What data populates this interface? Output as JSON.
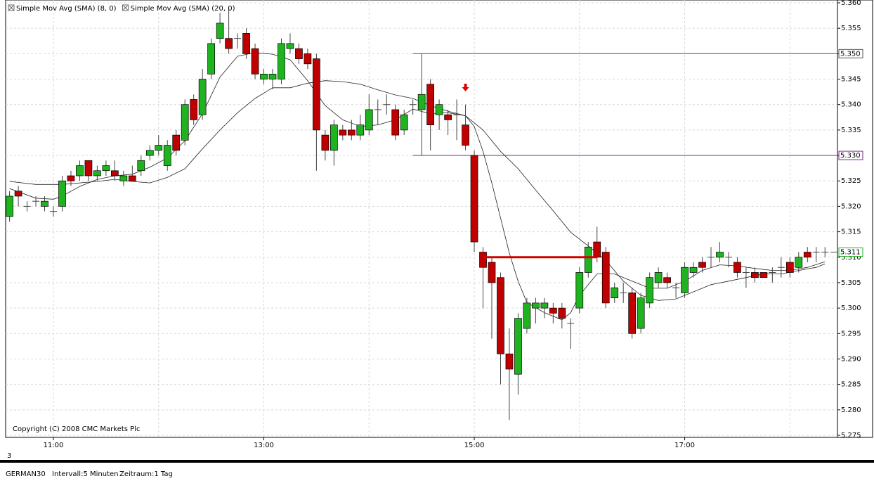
{
  "chart_data": {
    "type": "candlestick",
    "indicators": [
      {
        "name": "Simple Mov Avg (SMA) (8, 0)",
        "color": "#222222",
        "x": [
          "10:35",
          "10:50",
          "11:00",
          "11:05",
          "11:15",
          "11:25",
          "11:35",
          "11:45",
          "11:55",
          "12:05",
          "12:15",
          "12:25",
          "12:35",
          "12:45",
          "12:55",
          "13:05",
          "13:15",
          "13:25",
          "13:35",
          "13:45",
          "13:55",
          "14:05",
          "14:15",
          "14:25",
          "14:35",
          "14:45",
          "14:55",
          "15:00",
          "15:05",
          "15:10",
          "15:15",
          "15:20",
          "15:25",
          "15:30",
          "15:40",
          "15:50",
          "15:55",
          "16:00",
          "16:10",
          "16:20",
          "16:30",
          "16:40",
          "16:50",
          "17:00",
          "17:10",
          "17:20",
          "17:30",
          "17:40",
          "17:50",
          "18:00",
          "18:10",
          "18:20"
        ],
        "values": [
          5323.5,
          5321.6,
          5321.4,
          5322,
          5323.9,
          5325.3,
          5326,
          5326.3,
          5327.7,
          5329.5,
          5332.9,
          5338.2,
          5345.4,
          5349.5,
          5350.2,
          5349.9,
          5348.8,
          5344.7,
          5339.8,
          5337,
          5335.7,
          5336,
          5337,
          5339.1,
          5338.2,
          5338.4,
          5337.8,
          5335.7,
          5330.8,
          5324.6,
          5317.7,
          5310.8,
          5305.3,
          5301.1,
          5299.1,
          5297.7,
          5299.1,
          5302.5,
          5306.7,
          5306.7,
          5305.3,
          5303.9,
          5303.9,
          5305.3,
          5307.4,
          5308.5,
          5308.3,
          5307.8,
          5307.4,
          5307.4,
          5308,
          5309.1
        ]
      },
      {
        "name": "Simple Mov Avg (SMA) (20, 0)",
        "color": "#222222",
        "x": [
          "10:35",
          "10:50",
          "11:05",
          "11:25",
          "11:35",
          "11:45",
          "11:55",
          "12:05",
          "12:15",
          "12:25",
          "12:35",
          "12:45",
          "12:55",
          "13:05",
          "13:15",
          "13:25",
          "13:35",
          "13:45",
          "13:55",
          "14:05",
          "14:15",
          "14:25",
          "14:35",
          "14:45",
          "14:55",
          "15:05",
          "15:15",
          "15:25",
          "15:35",
          "15:45",
          "15:55",
          "16:05",
          "16:15",
          "16:25",
          "16:35",
          "16:45",
          "16:55",
          "17:05",
          "17:15",
          "17:25",
          "17:35",
          "17:45",
          "17:55",
          "18:05",
          "18:15",
          "18:20"
        ],
        "values": [
          5324.9,
          5324.3,
          5324.3,
          5324.9,
          5325.3,
          5324.9,
          5324.6,
          5325.7,
          5327.4,
          5331.3,
          5335,
          5338.4,
          5341.2,
          5343.3,
          5343.3,
          5344.2,
          5344.7,
          5344.5,
          5344,
          5342.9,
          5341.9,
          5341.2,
          5339.8,
          5338.7,
          5337.8,
          5335,
          5330.8,
          5327.4,
          5323.2,
          5319.1,
          5314.9,
          5312.2,
          5309.4,
          5305.3,
          5302.5,
          5301.5,
          5301.8,
          5303.2,
          5304.6,
          5305.3,
          5306,
          5306.7,
          5306.7,
          5307.4,
          5308,
          5308.7
        ]
      }
    ],
    "x": [
      "10:35",
      "10:40",
      "10:45",
      "10:50",
      "10:55",
      "11:00",
      "11:05",
      "11:10",
      "11:15",
      "11:20",
      "11:25",
      "11:30",
      "11:35",
      "11:40",
      "11:45",
      "11:50",
      "11:55",
      "12:00",
      "12:05",
      "12:10",
      "12:15",
      "12:20",
      "12:25",
      "12:30",
      "12:35",
      "12:40",
      "12:45",
      "12:50",
      "12:55",
      "13:00",
      "13:05",
      "13:10",
      "13:15",
      "13:20",
      "13:25",
      "13:30",
      "13:35",
      "13:40",
      "13:45",
      "13:50",
      "13:55",
      "14:00",
      "14:05",
      "14:10",
      "14:15",
      "14:20",
      "14:25",
      "14:30",
      "14:35",
      "14:40",
      "14:45",
      "14:50",
      "14:55",
      "15:00",
      "15:05",
      "15:10",
      "15:15",
      "15:20",
      "15:25",
      "15:30",
      "15:35",
      "15:40",
      "15:45",
      "15:50",
      "15:55",
      "16:00",
      "16:05",
      "16:10",
      "16:15",
      "16:20",
      "16:25",
      "16:30",
      "16:35",
      "16:40",
      "16:45",
      "16:50",
      "16:55",
      "17:00",
      "17:05",
      "17:10",
      "17:15",
      "17:20",
      "17:25",
      "17:30",
      "17:35",
      "17:40",
      "17:45",
      "17:50",
      "17:55",
      "18:00",
      "18:05",
      "18:10",
      "18:15",
      "18:20"
    ],
    "open": [
      5318,
      5323,
      5320,
      5321,
      5320,
      5319,
      5320,
      5326,
      5326,
      5329,
      5326,
      5327,
      5327,
      5325,
      5326,
      5327,
      5330,
      5331,
      5328,
      5334,
      5333,
      5341,
      5338,
      5346,
      5353,
      5353,
      5353,
      5354,
      5351,
      5345,
      5345,
      5345,
      5351,
      5351,
      5350,
      5349,
      5334,
      5331,
      5335,
      5335,
      5334,
      5335,
      5339,
      5340,
      5339,
      5335,
      5340,
      5339,
      5344,
      5338,
      5338,
      5338,
      5336,
      5330,
      5311,
      5309,
      5306,
      5291,
      5287,
      5296,
      5300,
      5300,
      5300,
      5300,
      5297,
      5300,
      5307,
      5313,
      5311,
      5302,
      5303,
      5303,
      5296,
      5301,
      5305,
      5306,
      5304,
      5303,
      5307,
      5309,
      5310,
      5310,
      5310,
      5309,
      5307,
      5307,
      5307,
      5307,
      5308,
      5309,
      5308,
      5311,
      5311,
      5311
    ],
    "high": [
      5323,
      5324,
      5321,
      5322,
      5322,
      5320,
      5326,
      5327,
      5329,
      5329,
      5328,
      5329,
      5329,
      5327,
      5328,
      5330,
      5332,
      5334,
      5333,
      5335,
      5341,
      5342,
      5347,
      5353,
      5358,
      5359,
      5354,
      5355,
      5352,
      5347,
      5347,
      5353,
      5354,
      5352,
      5351,
      5350,
      5335,
      5337,
      5336,
      5337,
      5338,
      5342,
      5341,
      5342,
      5340,
      5339,
      5341,
      5350,
      5345,
      5341,
      5339,
      5341,
      5340,
      5331,
      5312,
      5310,
      5307,
      5296,
      5299,
      5302,
      5302,
      5302,
      5301,
      5301,
      5298,
      5308,
      5313,
      5316,
      5312,
      5305,
      5305,
      5304,
      5303,
      5307,
      5308,
      5307,
      5305,
      5309,
      5309,
      5310,
      5312,
      5313,
      5311,
      5310,
      5308,
      5308,
      5307,
      5308,
      5310,
      5310,
      5311,
      5312,
      5312,
      5312
    ],
    "low": [
      5317,
      5320,
      5319,
      5320,
      5319,
      5318,
      5319,
      5324,
      5325,
      5325,
      5325,
      5326,
      5325,
      5324,
      5325,
      5326,
      5329,
      5330,
      5327,
      5330,
      5332,
      5336,
      5337,
      5345,
      5352,
      5350,
      5351,
      5349,
      5345,
      5344,
      5343,
      5344,
      5350,
      5348,
      5347,
      5327,
      5329,
      5328,
      5333,
      5333,
      5333,
      5334,
      5336,
      5338,
      5333,
      5334,
      5338,
      5330,
      5331,
      5335,
      5334,
      5333,
      5331,
      5311,
      5300,
      5294,
      5285,
      5278,
      5283,
      5295,
      5297,
      5298,
      5297,
      5296,
      5292,
      5299,
      5306,
      5309,
      5300,
      5301,
      5301,
      5294,
      5295,
      5300,
      5304,
      5304,
      5302,
      5302,
      5306,
      5307,
      5308,
      5309,
      5308,
      5306,
      5304,
      5305,
      5306,
      5305,
      5306,
      5306,
      5307,
      5309,
      5309,
      5310
    ],
    "close": [
      5322,
      5322,
      5320,
      5321,
      5321,
      5319,
      5325,
      5325,
      5328,
      5326,
      5327,
      5328,
      5326,
      5326,
      5325,
      5329,
      5331,
      5332,
      5332,
      5331,
      5340,
      5337,
      5345,
      5352,
      5356,
      5351,
      5353,
      5350,
      5346,
      5346,
      5346,
      5352,
      5352,
      5349,
      5348,
      5335,
      5331,
      5336,
      5334,
      5334,
      5336,
      5339,
      5339,
      5340,
      5334,
      5338,
      5340,
      5342,
      5336,
      5340,
      5337,
      5338,
      5332,
      5313,
      5308,
      5305,
      5291,
      5288,
      5298,
      5301,
      5301,
      5301,
      5299,
      5298,
      5297,
      5307,
      5312,
      5310,
      5301,
      5304,
      5303,
      5295,
      5302,
      5306,
      5307,
      5305,
      5304,
      5308,
      5308,
      5308,
      5310,
      5311,
      5310,
      5307,
      5307,
      5306,
      5306,
      5307,
      5308,
      5307,
      5310,
      5310,
      5311,
      5311
    ],
    "up_color": "#1fb41f",
    "down_color": "#c00000",
    "ylim": [
      5275,
      5360
    ],
    "yticks": [
      {
        "value": 5360,
        "label": "5.360"
      },
      {
        "value": 5355,
        "label": "5.355"
      },
      {
        "value": 5350,
        "label": "5.350"
      },
      {
        "value": 5345,
        "label": "5.345"
      },
      {
        "value": 5340,
        "label": "5.340"
      },
      {
        "value": 5335,
        "label": "5.335"
      },
      {
        "value": 5330,
        "label": "5.330"
      },
      {
        "value": 5325,
        "label": "5.325"
      },
      {
        "value": 5320,
        "label": "5.320"
      },
      {
        "value": 5315,
        "label": "5.315"
      },
      {
        "value": 5310,
        "label": "5.310"
      },
      {
        "value": 5305,
        "label": "5.305"
      },
      {
        "value": 5300,
        "label": "5.300"
      },
      {
        "value": 5295,
        "label": "5.295"
      },
      {
        "value": 5290,
        "label": "5.290"
      },
      {
        "value": 5285,
        "label": "5.285"
      },
      {
        "value": 5280,
        "label": "5.280"
      },
      {
        "value": 5275,
        "label": "5.275"
      }
    ],
    "xticks": [
      "11:00",
      "13:00",
      "15:00",
      "17:00"
    ],
    "grid": true,
    "levels": [
      {
        "value": 5350,
        "label": "5.350",
        "color": "#555555",
        "from": "14:25"
      },
      {
        "value": 5330,
        "label": "5.330",
        "color": "#7a2a8a",
        "from": "14:25"
      }
    ],
    "last_price": {
      "value": 5311,
      "label": "5.311",
      "color": "#1fb41f"
    },
    "segment": {
      "x": [
        "15:05",
        "16:10"
      ],
      "values": [
        5310,
        5310
      ],
      "color": "#d00000"
    },
    "arrow": {
      "x": "14:55",
      "value": 5343,
      "color": "#e00000"
    },
    "copyright": "Copyright (C) 2008 CMC Markets Plc"
  },
  "footer": {
    "page": "3",
    "instrument": "GERMAN30",
    "interval": "Intervall:5 Minuten",
    "period": "Zeitraum:1 Tag"
  }
}
